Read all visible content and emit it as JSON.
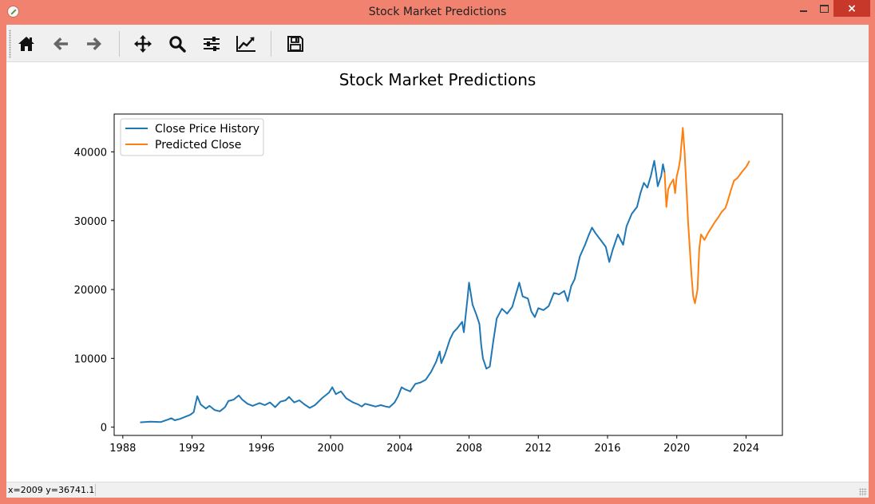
{
  "window": {
    "title": "Stock Market Predictions",
    "close_label": "×"
  },
  "toolbar": {
    "buttons": [
      {
        "name": "home-button",
        "icon": "home-icon"
      },
      {
        "name": "back-button",
        "icon": "arrow-left-icon"
      },
      {
        "name": "forward-button",
        "icon": "arrow-right-icon"
      },
      {
        "name": "pan-button",
        "icon": "move-icon"
      },
      {
        "name": "zoom-button",
        "icon": "magnifier-icon"
      },
      {
        "name": "configure-subplots-button",
        "icon": "sliders-icon"
      },
      {
        "name": "edit-axes-button",
        "icon": "line-chart-icon"
      },
      {
        "name": "save-button",
        "icon": "floppy-disk-icon"
      }
    ]
  },
  "status": {
    "coords": "x=2009 y=36741.1"
  },
  "colors": {
    "history": "#1f77b4",
    "predicted": "#ff7f0e",
    "window_border": "#f0826f",
    "close_button": "#c7372a"
  },
  "chart_data": {
    "type": "line",
    "title": "Stock Market Predictions",
    "xlabel": "",
    "ylabel": "",
    "xlim": [
      1987.5,
      2026.1
    ],
    "ylim": [
      -1200,
      45500
    ],
    "x_ticks": [
      1988,
      1992,
      1996,
      2000,
      2004,
      2008,
      2012,
      2016,
      2020,
      2024
    ],
    "y_ticks": [
      0,
      10000,
      20000,
      30000,
      40000
    ],
    "grid": false,
    "legend": "top-left",
    "series": [
      {
        "name": "Close Price History",
        "color": "#1f77b4",
        "points": [
          [
            1989.0,
            700
          ],
          [
            1989.6,
            800
          ],
          [
            1990.2,
            750
          ],
          [
            1990.6,
            1100
          ],
          [
            1990.8,
            1300
          ],
          [
            1991.0,
            1000
          ],
          [
            1991.3,
            1200
          ],
          [
            1991.6,
            1500
          ],
          [
            1991.9,
            1800
          ],
          [
            1992.1,
            2200
          ],
          [
            1992.2,
            3400
          ],
          [
            1992.3,
            4500
          ],
          [
            1992.5,
            3300
          ],
          [
            1992.8,
            2700
          ],
          [
            1993.0,
            3100
          ],
          [
            1993.3,
            2500
          ],
          [
            1993.6,
            2300
          ],
          [
            1993.9,
            2900
          ],
          [
            1994.1,
            3800
          ],
          [
            1994.4,
            4000
          ],
          [
            1994.7,
            4600
          ],
          [
            1994.9,
            4000
          ],
          [
            1995.2,
            3400
          ],
          [
            1995.5,
            3100
          ],
          [
            1995.9,
            3500
          ],
          [
            1996.2,
            3200
          ],
          [
            1996.5,
            3600
          ],
          [
            1996.8,
            2900
          ],
          [
            1997.1,
            3700
          ],
          [
            1997.4,
            3900
          ],
          [
            1997.6,
            4400
          ],
          [
            1997.9,
            3600
          ],
          [
            1998.2,
            3900
          ],
          [
            1998.5,
            3300
          ],
          [
            1998.8,
            2800
          ],
          [
            1999.1,
            3200
          ],
          [
            1999.5,
            4200
          ],
          [
            1999.9,
            5000
          ],
          [
            2000.1,
            5800
          ],
          [
            2000.3,
            4800
          ],
          [
            2000.6,
            5200
          ],
          [
            2000.9,
            4200
          ],
          [
            2001.3,
            3600
          ],
          [
            2001.6,
            3300
          ],
          [
            2001.8,
            3000
          ],
          [
            2002.0,
            3400
          ],
          [
            2002.3,
            3200
          ],
          [
            2002.6,
            3000
          ],
          [
            2002.9,
            3200
          ],
          [
            2003.2,
            3000
          ],
          [
            2003.4,
            2900
          ],
          [
            2003.7,
            3600
          ],
          [
            2003.9,
            4500
          ],
          [
            2004.1,
            5800
          ],
          [
            2004.3,
            5500
          ],
          [
            2004.6,
            5200
          ],
          [
            2004.9,
            6300
          ],
          [
            2005.2,
            6500
          ],
          [
            2005.5,
            6900
          ],
          [
            2005.8,
            8000
          ],
          [
            2006.1,
            9500
          ],
          [
            2006.3,
            11000
          ],
          [
            2006.4,
            9300
          ],
          [
            2006.6,
            10500
          ],
          [
            2006.9,
            12800
          ],
          [
            2007.1,
            13800
          ],
          [
            2007.3,
            14300
          ],
          [
            2007.6,
            15300
          ],
          [
            2007.7,
            13800
          ],
          [
            2007.9,
            18500
          ],
          [
            2008.0,
            21000
          ],
          [
            2008.2,
            17800
          ],
          [
            2008.4,
            16500
          ],
          [
            2008.6,
            15000
          ],
          [
            2008.7,
            12000
          ],
          [
            2008.8,
            10000
          ],
          [
            2008.9,
            9300
          ],
          [
            2009.0,
            8500
          ],
          [
            2009.2,
            8800
          ],
          [
            2009.4,
            12500
          ],
          [
            2009.6,
            15800
          ],
          [
            2009.9,
            17200
          ],
          [
            2010.2,
            16500
          ],
          [
            2010.5,
            17500
          ],
          [
            2010.8,
            20100
          ],
          [
            2010.9,
            21000
          ],
          [
            2011.1,
            19000
          ],
          [
            2011.4,
            18700
          ],
          [
            2011.6,
            16800
          ],
          [
            2011.8,
            16000
          ],
          [
            2012.0,
            17300
          ],
          [
            2012.3,
            17000
          ],
          [
            2012.6,
            17600
          ],
          [
            2012.9,
            19500
          ],
          [
            2013.2,
            19300
          ],
          [
            2013.5,
            19800
          ],
          [
            2013.7,
            18300
          ],
          [
            2013.9,
            20500
          ],
          [
            2014.1,
            21500
          ],
          [
            2014.4,
            24800
          ],
          [
            2014.7,
            26500
          ],
          [
            2014.9,
            27800
          ],
          [
            2015.1,
            29000
          ],
          [
            2015.3,
            28200
          ],
          [
            2015.6,
            27200
          ],
          [
            2015.9,
            26200
          ],
          [
            2016.1,
            24000
          ],
          [
            2016.3,
            25800
          ],
          [
            2016.6,
            28000
          ],
          [
            2016.9,
            26500
          ],
          [
            2017.1,
            29200
          ],
          [
            2017.4,
            31000
          ],
          [
            2017.7,
            32000
          ],
          [
            2017.9,
            34000
          ],
          [
            2018.1,
            35500
          ],
          [
            2018.3,
            34800
          ],
          [
            2018.5,
            36500
          ],
          [
            2018.7,
            38700
          ],
          [
            2018.8,
            37000
          ],
          [
            2018.9,
            35000
          ],
          [
            2019.1,
            36500
          ],
          [
            2019.2,
            38200
          ],
          [
            2019.3,
            37000
          ]
        ]
      },
      {
        "name": "Predicted Close",
        "color": "#ff7f0e",
        "points": [
          [
            2019.3,
            37000
          ],
          [
            2019.4,
            32000
          ],
          [
            2019.5,
            34500
          ],
          [
            2019.6,
            35200
          ],
          [
            2019.8,
            36000
          ],
          [
            2019.9,
            34000
          ],
          [
            2020.0,
            36500
          ],
          [
            2020.1,
            37500
          ],
          [
            2020.2,
            39000
          ],
          [
            2020.3,
            42000
          ],
          [
            2020.35,
            43500
          ],
          [
            2020.45,
            40000
          ],
          [
            2020.55,
            35000
          ],
          [
            2020.65,
            30000
          ],
          [
            2020.75,
            26000
          ],
          [
            2020.85,
            22000
          ],
          [
            2020.95,
            19000
          ],
          [
            2021.05,
            18000
          ],
          [
            2021.2,
            20000
          ],
          [
            2021.3,
            26000
          ],
          [
            2021.4,
            28000
          ],
          [
            2021.6,
            27200
          ],
          [
            2021.8,
            28200
          ],
          [
            2022.0,
            29000
          ],
          [
            2022.2,
            29800
          ],
          [
            2022.4,
            30500
          ],
          [
            2022.6,
            31300
          ],
          [
            2022.8,
            31800
          ],
          [
            2022.9,
            32500
          ],
          [
            2023.1,
            34200
          ],
          [
            2023.3,
            35800
          ],
          [
            2023.5,
            36200
          ],
          [
            2023.8,
            37200
          ],
          [
            2024.0,
            37800
          ],
          [
            2024.2,
            38700
          ]
        ]
      }
    ]
  }
}
